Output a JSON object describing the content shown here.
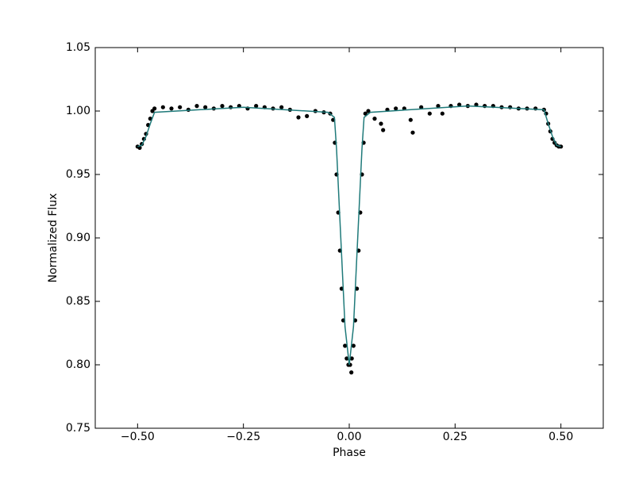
{
  "chart_data": {
    "type": "scatter",
    "x_label": "Phase",
    "y_label": "Normalized Flux",
    "xlim": [
      -0.6,
      0.6
    ],
    "xticks": [
      {
        "value": -0.5,
        "label": "−0.50"
      },
      {
        "value": -0.25,
        "label": "−0.25"
      },
      {
        "value": 0,
        "label": "0.00"
      },
      {
        "value": 0.25,
        "label": "0.25"
      },
      {
        "value": 0.5,
        "label": "0.50"
      }
    ],
    "ylim": [
      0.75,
      1.05
    ],
    "yticks": [
      {
        "value": 0.75,
        "label": "0.75"
      },
      {
        "value": 0.8,
        "label": "0.80"
      },
      {
        "value": 0.85,
        "label": "0.85"
      },
      {
        "value": 0.9,
        "label": "0.90"
      },
      {
        "value": 0.95,
        "label": "0.95"
      },
      {
        "value": 1.0,
        "label": "1.00"
      },
      {
        "value": 1.05,
        "label": "1.05"
      }
    ],
    "grid": false,
    "series": [
      {
        "type": "scatter",
        "color": "#000000",
        "x": [
          -0.5,
          -0.495,
          -0.49,
          -0.485,
          -0.48,
          -0.475,
          -0.47,
          -0.465,
          -0.46,
          -0.44,
          -0.42,
          -0.4,
          -0.38,
          -0.36,
          -0.34,
          -0.32,
          -0.3,
          -0.28,
          -0.26,
          -0.24,
          -0.22,
          -0.2,
          -0.18,
          -0.16,
          -0.14,
          -0.12,
          -0.1,
          -0.08,
          -0.06,
          -0.045,
          -0.038,
          -0.034,
          -0.03,
          -0.026,
          -0.022,
          -0.018,
          -0.014,
          -0.01,
          -0.006,
          -0.002,
          0.002,
          0.005,
          0.006,
          0.01,
          0.014,
          0.018,
          0.022,
          0.026,
          0.03,
          0.034,
          0.038,
          0.045,
          0.06,
          0.075,
          0.08,
          0.09,
          0.11,
          0.13,
          0.145,
          0.15,
          0.17,
          0.19,
          0.21,
          0.22,
          0.24,
          0.26,
          0.28,
          0.3,
          0.32,
          0.34,
          0.36,
          0.38,
          0.4,
          0.42,
          0.44,
          0.46,
          0.465,
          0.47,
          0.475,
          0.48,
          0.485,
          0.49,
          0.495,
          0.5
        ],
        "values": [
          0.972,
          0.971,
          0.974,
          0.978,
          0.982,
          0.989,
          0.994,
          1.0,
          1.002,
          1.003,
          1.002,
          1.003,
          1.001,
          1.004,
          1.003,
          1.002,
          1.004,
          1.003,
          1.004,
          1.002,
          1.004,
          1.003,
          1.002,
          1.003,
          1.001,
          0.995,
          0.996,
          1.0,
          0.999,
          0.998,
          0.993,
          0.975,
          0.95,
          0.92,
          0.89,
          0.86,
          0.835,
          0.815,
          0.805,
          0.8,
          0.8,
          0.794,
          0.805,
          0.815,
          0.835,
          0.86,
          0.89,
          0.92,
          0.95,
          0.975,
          0.998,
          1.0,
          0.994,
          0.99,
          0.985,
          1.001,
          1.002,
          1.002,
          0.993,
          0.983,
          1.003,
          0.998,
          1.004,
          0.998,
          1.004,
          1.005,
          1.004,
          1.005,
          1.004,
          1.004,
          1.003,
          1.003,
          1.002,
          1.002,
          1.002,
          1.001,
          0.998,
          0.99,
          0.984,
          0.978,
          0.975,
          0.973,
          0.972,
          0.972
        ]
      },
      {
        "type": "line",
        "color": "#1f7a7a",
        "x": [
          -0.5,
          -0.49,
          -0.48,
          -0.47,
          -0.46,
          -0.25,
          -0.05,
          -0.035,
          -0.03,
          -0.02,
          -0.01,
          0,
          0.01,
          0.02,
          0.03,
          0.035,
          0.05,
          0.28,
          0.46,
          0.47,
          0.48,
          0.49,
          0.5
        ],
        "values": [
          0.972,
          0.973,
          0.98,
          0.99,
          0.999,
          1.003,
          0.999,
          0.995,
          0.97,
          0.9,
          0.83,
          0.8,
          0.83,
          0.9,
          0.97,
          0.995,
          0.999,
          1.004,
          1.001,
          0.99,
          0.98,
          0.973,
          0.972
        ]
      }
    ]
  }
}
